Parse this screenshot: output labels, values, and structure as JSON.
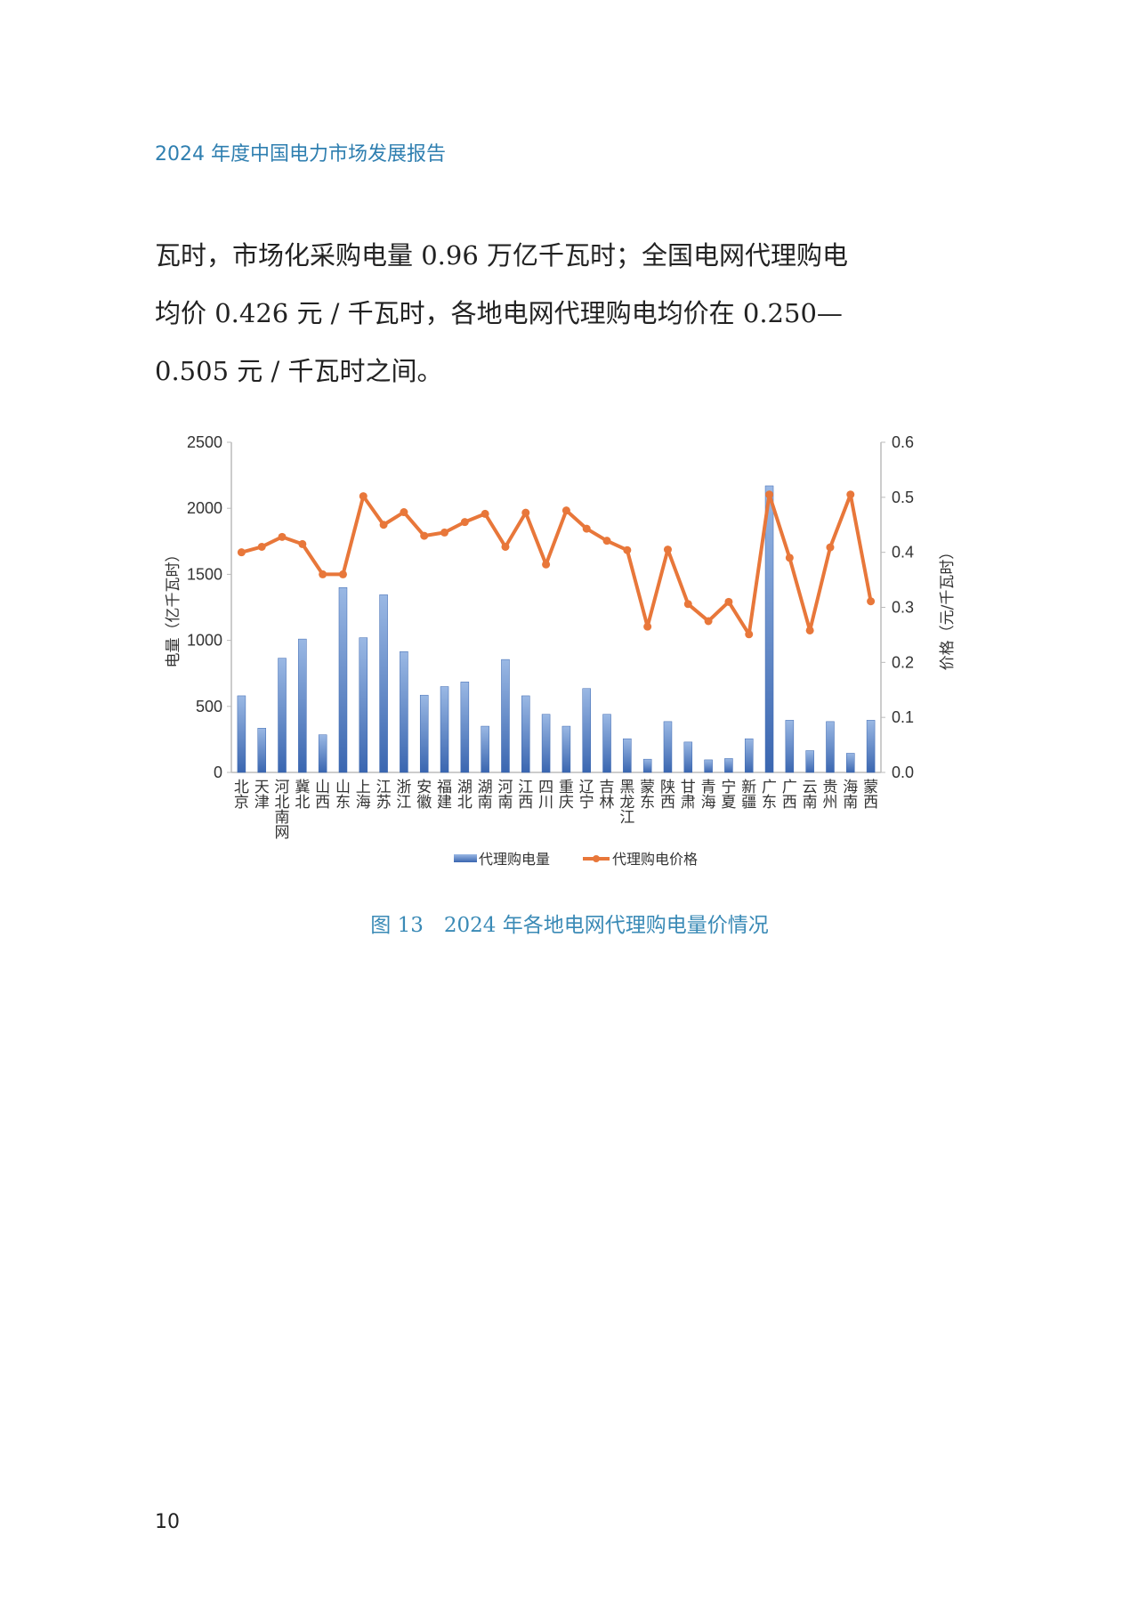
{
  "header": {
    "title": "2024 年度中国电力市场发展报告"
  },
  "body": {
    "lines": [
      "瓦时，市场化采购电量 0.96 万亿千瓦时；全国电网代理购电",
      "均价 0.426 元 / 千瓦时，各地电网代理购电均价在 0.250—",
      "0.505 元 / 千瓦时之间。"
    ]
  },
  "chart_data": {
    "type": "bar+line",
    "categories": [
      "北京",
      "天津",
      "河北南网",
      "冀北",
      "山西",
      "山东",
      "上海",
      "江苏",
      "浙江",
      "安徽",
      "福建",
      "湖北",
      "湖南",
      "河南",
      "江西",
      "四川",
      "重庆",
      "辽宁",
      "吉林",
      "黑龙江",
      "蒙东",
      "陕西",
      "甘肃",
      "青海",
      "宁夏",
      "新疆",
      "广东",
      "广西",
      "云南",
      "贵州",
      "海南",
      "蒙西"
    ],
    "series": [
      {
        "name": "代理购电量",
        "type": "bar",
        "axis": "left",
        "color": "#4a78c0",
        "values": [
          580,
          335,
          865,
          1010,
          285,
          1400,
          1020,
          1345,
          915,
          585,
          650,
          685,
          350,
          855,
          580,
          440,
          350,
          635,
          440,
          255,
          100,
          385,
          230,
          95,
          105,
          255,
          2170,
          395,
          165,
          385,
          145,
          395
        ]
      },
      {
        "name": "代理购电价格",
        "type": "line",
        "axis": "right",
        "color": "#e8773a",
        "values": [
          0.4,
          0.41,
          0.428,
          0.415,
          0.36,
          0.36,
          0.502,
          0.45,
          0.473,
          0.43,
          0.436,
          0.455,
          0.47,
          0.41,
          0.472,
          0.378,
          0.476,
          0.443,
          0.421,
          0.404,
          0.265,
          0.405,
          0.306,
          0.275,
          0.31,
          0.251,
          0.505,
          0.39,
          0.258,
          0.409,
          0.505,
          0.311
        ]
      }
    ],
    "ylabel": "电量（亿千瓦时）",
    "ylabel_right": "价格（元/千瓦时）",
    "ylim": [
      0,
      2500
    ],
    "yticks": [
      "0",
      "500",
      "1000",
      "1500",
      "2000",
      "2500"
    ],
    "ylim_right": [
      0,
      0.6
    ],
    "yticks_right": [
      "0.0",
      "0.1",
      "0.2",
      "0.3",
      "0.4",
      "0.5",
      "0.6"
    ],
    "grid": false,
    "legend": "bottom"
  },
  "caption": "图 13　2024 年各地电网代理购电量价情况",
  "page_number": "10"
}
